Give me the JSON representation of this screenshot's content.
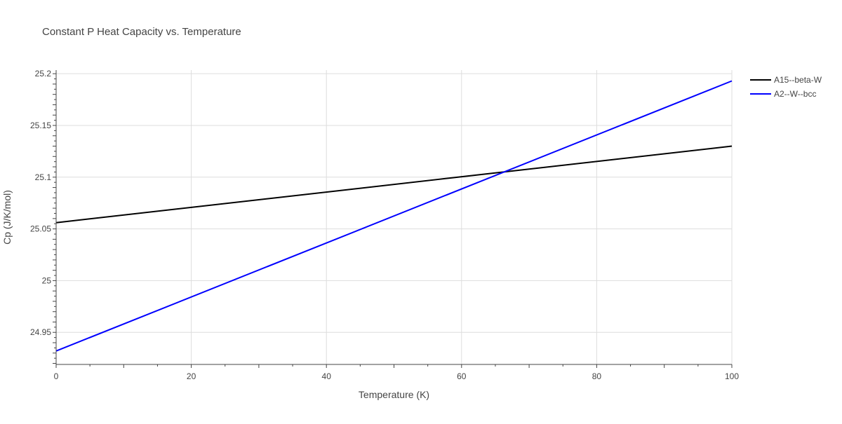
{
  "chart_data": {
    "type": "line",
    "title": "Constant P Heat Capacity vs. Temperature",
    "xlabel": "Temperature (K)",
    "ylabel": "Cp (J/K/mol)",
    "xlim": [
      0,
      100
    ],
    "ylim": [
      24.919,
      25.2035
    ],
    "x_ticks": [
      0,
      20,
      40,
      60,
      80,
      100
    ],
    "x_tick_labels": [
      "0",
      "20",
      "40",
      "60",
      "80",
      "100"
    ],
    "y_ticks": [
      24.95,
      25.0,
      25.05,
      25.1,
      25.15,
      25.2
    ],
    "y_tick_labels": [
      "24.95",
      "25",
      "25.05",
      "25.1",
      "25.15",
      "25.2"
    ],
    "grid": true,
    "legend_position": "top-right",
    "series": [
      {
        "name": "A15--beta-W",
        "color": "#000000",
        "x": [
          0,
          100
        ],
        "y": [
          25.056,
          25.13
        ]
      },
      {
        "name": "A2--W--bcc",
        "color": "#0000ff",
        "x": [
          0,
          100
        ],
        "y": [
          24.932,
          25.193
        ]
      }
    ]
  }
}
